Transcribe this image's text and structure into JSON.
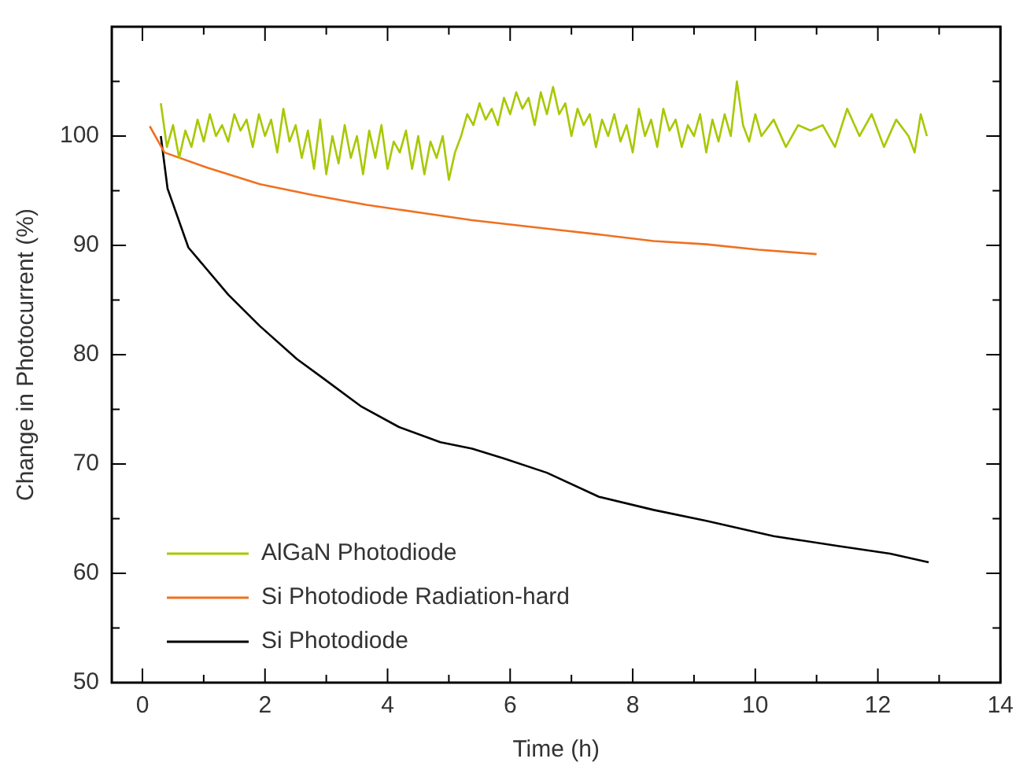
{
  "chart_data": {
    "type": "line",
    "xlabel": "Time (h)",
    "ylabel": "Change in Photocurrent (%)",
    "xlim": [
      -0.5,
      14
    ],
    "xticks": [
      0,
      {
        "value": 1,
        "label": null
      },
      2,
      {
        "value": 3,
        "label": null
      },
      4,
      {
        "value": 5,
        "label": null
      },
      6,
      {
        "value": 7,
        "label": null
      },
      8,
      {
        "value": 9,
        "label": null
      },
      10,
      {
        "value": 11,
        "label": null
      },
      12,
      {
        "value": 13,
        "label": null
      },
      14
    ],
    "ylim": [
      50,
      110
    ],
    "yticks": [
      50,
      {
        "value": 55,
        "label": null
      },
      60,
      {
        "value": 65,
        "label": null
      },
      70,
      {
        "value": 75,
        "label": null
      },
      80,
      {
        "value": 85,
        "label": null
      },
      90,
      {
        "value": 95,
        "label": null
      },
      100,
      {
        "value": 105,
        "label": null
      }
    ],
    "grid": false,
    "legend": "bottom left",
    "marker": "none",
    "line_style": "solid",
    "series": [
      {
        "name": "AlGaN Photodiode",
        "color": "#a8c800",
        "x": [
          0.3,
          0.4,
          0.5,
          0.6,
          0.7,
          0.8,
          0.9,
          1.0,
          1.1,
          1.2,
          1.3,
          1.4,
          1.5,
          1.6,
          1.7,
          1.8,
          1.9,
          2.0,
          2.1,
          2.2,
          2.3,
          2.4,
          2.5,
          2.6,
          2.7,
          2.8,
          2.9,
          3.0,
          3.1,
          3.2,
          3.3,
          3.4,
          3.5,
          3.6,
          3.7,
          3.8,
          3.9,
          4.0,
          4.1,
          4.2,
          4.3,
          4.4,
          4.5,
          4.6,
          4.7,
          4.8,
          4.9,
          5.0,
          5.1,
          5.2,
          5.3,
          5.4,
          5.5,
          5.6,
          5.7,
          5.8,
          5.9,
          6.0,
          6.1,
          6.2,
          6.3,
          6.4,
          6.5,
          6.6,
          6.7,
          6.8,
          6.9,
          7.0,
          7.1,
          7.2,
          7.3,
          7.4,
          7.5,
          7.6,
          7.7,
          7.8,
          7.9,
          8.0,
          8.1,
          8.2,
          8.3,
          8.4,
          8.5,
          8.6,
          8.7,
          8.8,
          8.9,
          9.0,
          9.1,
          9.2,
          9.3,
          9.4,
          9.5,
          9.6,
          9.7,
          9.8,
          9.9,
          10.0,
          10.1,
          10.3,
          10.5,
          10.7,
          10.9,
          11.1,
          11.3,
          11.5,
          11.7,
          11.9,
          12.1,
          12.3,
          12.5,
          12.6,
          12.7,
          12.8
        ],
        "values": [
          103,
          99,
          101,
          98,
          100.5,
          99,
          101.5,
          99.5,
          102,
          100,
          101,
          99.5,
          102,
          100.5,
          101.5,
          99,
          102,
          100,
          101.5,
          98.5,
          102.5,
          99.5,
          101,
          98,
          100.5,
          97,
          101.5,
          96.5,
          100,
          97.5,
          101,
          98,
          100,
          96.5,
          100.5,
          98,
          101,
          97,
          99.5,
          98.5,
          100.5,
          97,
          100,
          96.5,
          99.5,
          98,
          100,
          96,
          98.5,
          100,
          102,
          101,
          103,
          101.5,
          102.5,
          101,
          103.5,
          102,
          104,
          102.5,
          103.5,
          101,
          104,
          102,
          104.5,
          102,
          103,
          100,
          102.5,
          101,
          102,
          99,
          101.5,
          100,
          102,
          99.5,
          101,
          98.5,
          102.5,
          100,
          101.5,
          99,
          102.5,
          100.5,
          101.5,
          99,
          101,
          100,
          102,
          98.5,
          101.5,
          99.5,
          102,
          100,
          105,
          101,
          99.5,
          102,
          100,
          101.5,
          99,
          101,
          100.5,
          101,
          99,
          102.5,
          100,
          102,
          99,
          101.5,
          100,
          98.5,
          102,
          100
        ]
      },
      {
        "name": "Si Photodiode Radiation-hard",
        "color": "#f07020",
        "x": [
          0.12,
          0.36,
          1.06,
          1.92,
          2.78,
          3.66,
          4.52,
          5.38,
          6.8,
          7.45,
          8.34,
          9.2,
          10.05,
          11.0
        ],
        "values": [
          100.9,
          98.5,
          97.1,
          95.6,
          94.6,
          93.7,
          93.0,
          92.3,
          91.4,
          91.0,
          90.4,
          90.1,
          89.6,
          89.2
        ]
      },
      {
        "name": "Si Photodiode",
        "color": "#000000",
        "x": [
          0.3,
          0.41,
          0.75,
          1.4,
          1.92,
          2.52,
          2.96,
          3.56,
          4.18,
          4.86,
          5.38,
          5.9,
          6.6,
          7.45,
          8.34,
          9.2,
          10.3,
          11.35,
          12.2,
          12.83
        ],
        "values": [
          100,
          95.2,
          89.8,
          85.5,
          82.6,
          79.6,
          77.8,
          75.3,
          73.4,
          72,
          71.4,
          70.5,
          69.2,
          67,
          65.8,
          64.8,
          63.4,
          62.5,
          61.8,
          61
        ]
      }
    ]
  }
}
